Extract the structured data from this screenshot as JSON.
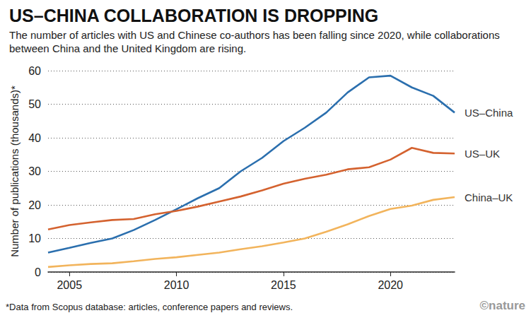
{
  "chart_data": {
    "type": "line",
    "title": "US–CHINA COLLABORATION IS DROPPING",
    "subtitle": "The number of articles with US and Chinese co-authors has been falling since 2020, while collaborations between China and the United Kingdom are rising.",
    "y_label": "Number of publications (thousands)*",
    "footnote": "*Data from Scopus database: articles, conference papers and reviews.",
    "credit": "©nature",
    "x": [
      2004,
      2005,
      2006,
      2007,
      2008,
      2009,
      2010,
      2011,
      2012,
      2013,
      2014,
      2015,
      2016,
      2017,
      2018,
      2019,
      2020,
      2021,
      2022,
      2023
    ],
    "series": [
      {
        "name": "US–China",
        "color": "#2b6fae",
        "values": [
          5.8,
          7.2,
          8.7,
          10,
          12.5,
          15.5,
          18.7,
          22,
          25,
          30,
          34,
          39,
          43,
          47.5,
          53.5,
          58,
          58.5,
          55,
          52.5,
          47.5
        ]
      },
      {
        "name": "US–UK",
        "color": "#d4622f",
        "values": [
          12.7,
          14,
          14.8,
          15.5,
          15.8,
          17.2,
          18.2,
          19.5,
          21,
          22.5,
          24.3,
          26.3,
          27.8,
          29,
          30.6,
          31.2,
          33.5,
          37,
          35.5,
          35.3
        ]
      },
      {
        "name": "China–UK",
        "color": "#f2b45c",
        "values": [
          1.5,
          2,
          2.4,
          2.6,
          3.2,
          3.9,
          4.4,
          5.1,
          5.8,
          6.8,
          7.7,
          8.8,
          10,
          12,
          14.2,
          16.7,
          18.8,
          19.8,
          21.5,
          22.3
        ]
      }
    ],
    "xlim": [
      2004,
      2023
    ],
    "xticks": [
      2005,
      2010,
      2015,
      2020
    ],
    "ylim": [
      0,
      60
    ],
    "yticks": [
      0,
      10,
      20,
      30,
      40,
      50,
      60
    ],
    "grid": true,
    "marker": "none"
  }
}
